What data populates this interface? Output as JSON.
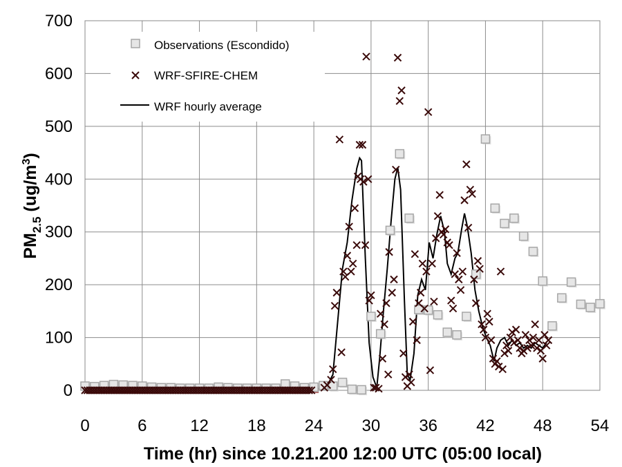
{
  "chart_data": {
    "type": "scatter",
    "xlabel": "Time (hr) since 10.21.200 12:00 UTC (05:00 local)",
    "ylabel": {
      "main": "PM",
      "sub": "2.5",
      "units_pre": " (ug/m",
      "units_sup": "3",
      "units_post": ")"
    },
    "xlim": [
      0,
      54
    ],
    "ylim": [
      0,
      700
    ],
    "xticks": [
      0,
      6,
      12,
      18,
      24,
      30,
      36,
      42,
      48,
      54
    ],
    "yticks": [
      0,
      100,
      200,
      300,
      400,
      500,
      600,
      700
    ],
    "grid": true,
    "legend_position": "top-left",
    "series": [
      {
        "name": "Observations (Escondido)",
        "marker": "square",
        "color": "#a6a6a6",
        "points": [
          [
            0,
            8
          ],
          [
            1,
            7
          ],
          [
            2,
            9
          ],
          [
            3,
            11
          ],
          [
            4,
            10
          ],
          [
            5,
            9
          ],
          [
            6,
            8
          ],
          [
            7,
            6
          ],
          [
            8,
            5
          ],
          [
            9,
            5
          ],
          [
            10,
            4
          ],
          [
            11,
            4
          ],
          [
            12,
            4
          ],
          [
            13,
            4
          ],
          [
            14,
            6
          ],
          [
            15,
            5
          ],
          [
            16,
            4
          ],
          [
            17,
            4
          ],
          [
            18,
            4
          ],
          [
            19,
            4
          ],
          [
            20,
            4
          ],
          [
            21,
            12
          ],
          [
            22,
            8
          ],
          [
            23,
            5
          ],
          [
            24,
            6
          ],
          [
            25,
            9
          ],
          [
            26,
            8
          ],
          [
            27,
            15
          ],
          [
            28,
            2
          ],
          [
            29,
            1
          ],
          [
            30,
            140
          ],
          [
            31,
            107
          ],
          [
            32,
            303
          ],
          [
            33,
            448
          ],
          [
            34,
            326
          ],
          [
            35,
            153
          ],
          [
            36,
            152
          ],
          [
            37,
            143
          ],
          [
            38,
            110
          ],
          [
            39,
            105
          ],
          [
            40,
            140
          ],
          [
            41,
            220
          ],
          [
            42,
            476
          ],
          [
            43,
            345
          ],
          [
            44,
            316
          ],
          [
            45,
            326
          ],
          [
            46,
            292
          ],
          [
            47,
            263
          ],
          [
            48,
            207
          ],
          [
            49,
            122
          ],
          [
            50,
            175
          ],
          [
            51,
            205
          ],
          [
            52,
            163
          ],
          [
            53,
            157
          ],
          [
            54,
            164
          ]
        ]
      },
      {
        "name": "WRF-SFIRE-CHEM",
        "marker": "x",
        "color": "#3a0a0a",
        "points": [
          [
            25.1,
            5
          ],
          [
            25.4,
            10
          ],
          [
            25.8,
            20
          ],
          [
            26,
            40
          ],
          [
            26.2,
            160
          ],
          [
            26.4,
            185
          ],
          [
            26.7,
            475
          ],
          [
            26.9,
            72
          ],
          [
            27.1,
            225
          ],
          [
            27.3,
            215
          ],
          [
            27.5,
            255
          ],
          [
            27.7,
            310
          ],
          [
            27.9,
            225
          ],
          [
            28.1,
            240
          ],
          [
            28.3,
            345
          ],
          [
            28.5,
            275
          ],
          [
            28.6,
            405
          ],
          [
            28.8,
            465
          ],
          [
            28.9,
            400
          ],
          [
            29.1,
            465
          ],
          [
            29.2,
            395
          ],
          [
            29.4,
            275
          ],
          [
            29.5,
            632
          ],
          [
            29.7,
            400
          ],
          [
            29.8,
            170
          ],
          [
            30,
            180
          ],
          [
            30.3,
            5
          ],
          [
            30.5,
            5
          ],
          [
            30.8,
            3
          ],
          [
            31,
            145
          ],
          [
            31.2,
            60
          ],
          [
            31.4,
            125
          ],
          [
            31.6,
            165
          ],
          [
            31.8,
            30
          ],
          [
            31.9,
            262
          ],
          [
            32.2,
            185
          ],
          [
            32.4,
            210
          ],
          [
            32.6,
            418
          ],
          [
            32.8,
            630
          ],
          [
            33,
            548
          ],
          [
            33.2,
            568
          ],
          [
            33.4,
            70
          ],
          [
            33.6,
            25
          ],
          [
            33.8,
            8
          ],
          [
            34,
            30
          ],
          [
            34.2,
            15
          ],
          [
            34.4,
            130
          ],
          [
            34.6,
            258
          ],
          [
            34.8,
            95
          ],
          [
            35,
            165
          ],
          [
            35.2,
            185
          ],
          [
            35.4,
            240
          ],
          [
            35.6,
            155
          ],
          [
            35.8,
            225
          ],
          [
            36,
            527
          ],
          [
            36.2,
            38
          ],
          [
            36.4,
            240
          ],
          [
            36.6,
            168
          ],
          [
            36.8,
            288
          ],
          [
            37,
            330
          ],
          [
            37.2,
            370
          ],
          [
            37.4,
            300
          ],
          [
            37.6,
            295
          ],
          [
            37.8,
            305
          ],
          [
            38,
            280
          ],
          [
            38.2,
            275
          ],
          [
            38.4,
            170
          ],
          [
            38.6,
            155
          ],
          [
            38.8,
            220
          ],
          [
            39,
            260
          ],
          [
            39.2,
            210
          ],
          [
            39.4,
            190
          ],
          [
            39.6,
            225
          ],
          [
            39.8,
            360
          ],
          [
            40,
            428
          ],
          [
            40.2,
            308
          ],
          [
            40.4,
            380
          ],
          [
            40.6,
            372
          ],
          [
            40.8,
            210
          ],
          [
            41,
            165
          ],
          [
            41.2,
            245
          ],
          [
            41.4,
            230
          ],
          [
            41.6,
            125
          ],
          [
            41.8,
            115
          ],
          [
            42,
            100
          ],
          [
            42.2,
            145
          ],
          [
            42.4,
            130
          ],
          [
            42.6,
            95
          ],
          [
            42.8,
            60
          ],
          [
            43,
            50
          ],
          [
            43.2,
            55
          ],
          [
            43.4,
            45
          ],
          [
            43.6,
            225
          ],
          [
            43.8,
            40
          ],
          [
            44,
            70
          ],
          [
            44.2,
            85
          ],
          [
            44.4,
            75
          ],
          [
            44.6,
            100
          ],
          [
            44.8,
            110
          ],
          [
            45,
            90
          ],
          [
            45.2,
            115
          ],
          [
            45.4,
            95
          ],
          [
            45.6,
            80
          ],
          [
            45.8,
            70
          ],
          [
            46,
            75
          ],
          [
            46.2,
            105
          ],
          [
            46.4,
            80
          ],
          [
            46.6,
            95
          ],
          [
            46.8,
            85
          ],
          [
            47,
            100
          ],
          [
            47.2,
            125
          ],
          [
            47.4,
            80
          ],
          [
            47.6,
            95
          ],
          [
            47.8,
            75
          ],
          [
            48,
            60
          ],
          [
            48.2,
            105
          ],
          [
            48.4,
            85
          ],
          [
            48.6,
            95
          ]
        ]
      },
      {
        "name": "WRF hourly average",
        "marker": "line",
        "color": "#000000",
        "points": [
          [
            24.5,
            3
          ],
          [
            25,
            5
          ],
          [
            25.5,
            12
          ],
          [
            26,
            30
          ],
          [
            26.5,
            130
          ],
          [
            27,
            230
          ],
          [
            27.5,
            280
          ],
          [
            28,
            360
          ],
          [
            28.5,
            420
          ],
          [
            28.8,
            440
          ],
          [
            29,
            435
          ],
          [
            29.4,
            250
          ],
          [
            29.8,
            90
          ],
          [
            30.2,
            25
          ],
          [
            30.6,
            5
          ],
          [
            30.9,
            60
          ],
          [
            31.3,
            150
          ],
          [
            31.7,
            230
          ],
          [
            32.1,
            320
          ],
          [
            32.5,
            400
          ],
          [
            32.8,
            422
          ],
          [
            33.1,
            380
          ],
          [
            33.5,
            170
          ],
          [
            33.8,
            30
          ],
          [
            34.1,
            20
          ],
          [
            34.5,
            70
          ],
          [
            34.9,
            180
          ],
          [
            35.3,
            210
          ],
          [
            35.7,
            190
          ],
          [
            36.1,
            280
          ],
          [
            36.5,
            250
          ],
          [
            36.9,
            295
          ],
          [
            37.3,
            330
          ],
          [
            37.7,
            300
          ],
          [
            38,
            240
          ],
          [
            38.4,
            220
          ],
          [
            38.8,
            250
          ],
          [
            39.1,
            260
          ],
          [
            39.5,
            305
          ],
          [
            39.8,
            335
          ],
          [
            40.1,
            310
          ],
          [
            40.5,
            260
          ],
          [
            40.9,
            190
          ],
          [
            41.3,
            150
          ],
          [
            41.7,
            120
          ],
          [
            42.1,
            100
          ],
          [
            42.5,
            85
          ],
          [
            42.9,
            55
          ],
          [
            43.2,
            80
          ],
          [
            43.6,
            95
          ],
          [
            44,
            100
          ],
          [
            44.4,
            85
          ],
          [
            44.8,
            95
          ],
          [
            45.2,
            85
          ],
          [
            45.6,
            90
          ],
          [
            46,
            80
          ],
          [
            46.4,
            85
          ],
          [
            46.8,
            80
          ],
          [
            47.2,
            90
          ],
          [
            47.6,
            85
          ],
          [
            48,
            80
          ],
          [
            48.4,
            90
          ]
        ]
      }
    ]
  }
}
